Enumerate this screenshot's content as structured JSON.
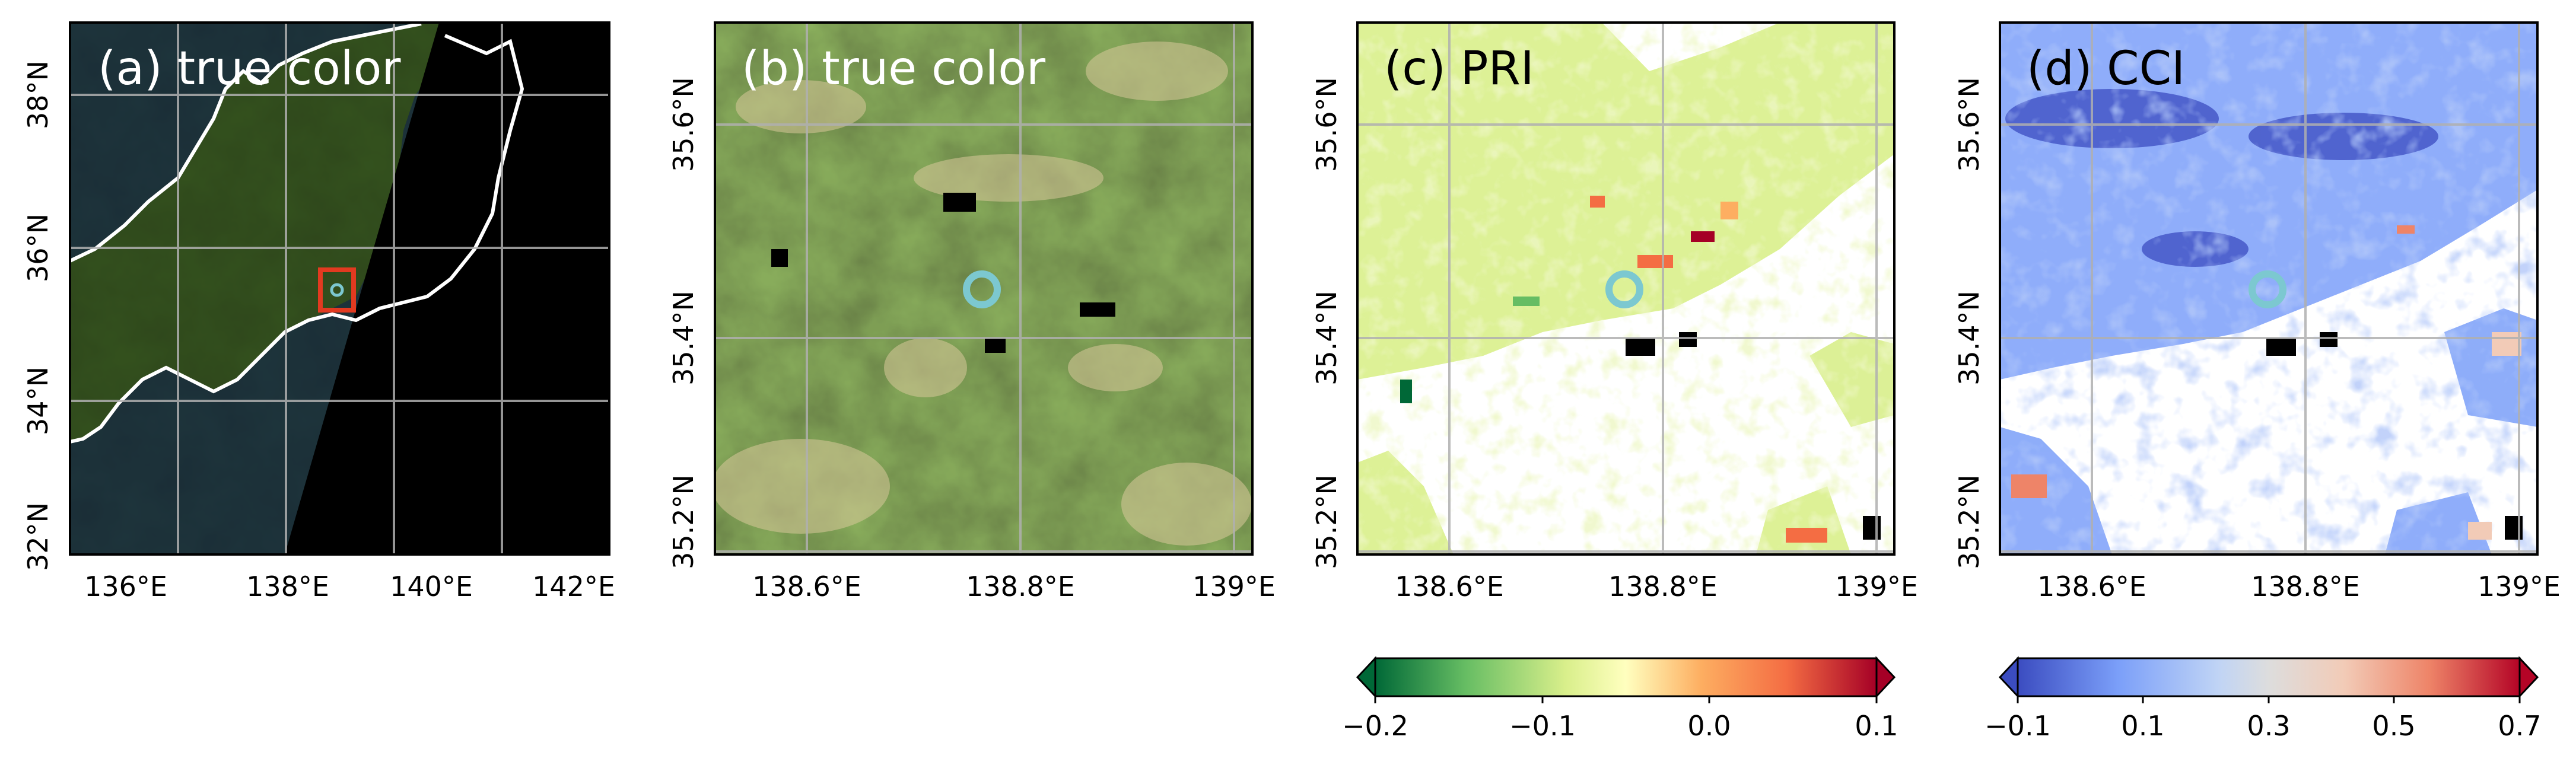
{
  "panels": [
    {
      "id": "a",
      "title": "(a) true color",
      "xticks": [
        "136°E",
        "138°E",
        "140°E",
        "142°E"
      ],
      "yticks": [
        "32°N",
        "34°N",
        "36°N",
        "38°N"
      ]
    },
    {
      "id": "b",
      "title": "(b) true color",
      "xticks": [
        "138.6°E",
        "138.8°E",
        "139°E"
      ],
      "yticks": [
        "35.2°N",
        "35.4°N",
        "35.6°N"
      ]
    },
    {
      "id": "c",
      "title": "(c) PRI",
      "xticks": [
        "138.6°E",
        "138.8°E",
        "139°E"
      ],
      "yticks": [
        "35.2°N",
        "35.4°N",
        "35.6°N"
      ]
    },
    {
      "id": "d",
      "title": "(d) CCI",
      "xticks": [
        "138.6°E",
        "138.8°E",
        "139°E"
      ],
      "yticks": [
        "35.2°N",
        "35.4°N",
        "35.6°N"
      ]
    }
  ],
  "colorbars": [
    {
      "name": "PRI",
      "ticks": [
        "−0.2",
        "−0.1",
        "0.0",
        "0.1"
      ],
      "colors": [
        "#006837",
        "#66bd63",
        "#d9ef8b",
        "#ffffbf",
        "#fdae61",
        "#f46d43",
        "#a50026"
      ]
    },
    {
      "name": "CCI",
      "ticks": [
        "−0.1",
        "0.1",
        "0.3",
        "0.5",
        "0.7"
      ],
      "colors": [
        "#3b4cc0",
        "#7b9ff9",
        "#c0d4f5",
        "#dddddd",
        "#f2cbb7",
        "#ee8468",
        "#b40426"
      ]
    }
  ],
  "colors": {
    "ocean": "#243a55",
    "land": "#3f5a2a",
    "nodata": "#000000",
    "gridline": "#b0b0b0",
    "coastline": "#ffffff",
    "marker": "#7cc8d0",
    "region-box": "#e23a20"
  }
}
